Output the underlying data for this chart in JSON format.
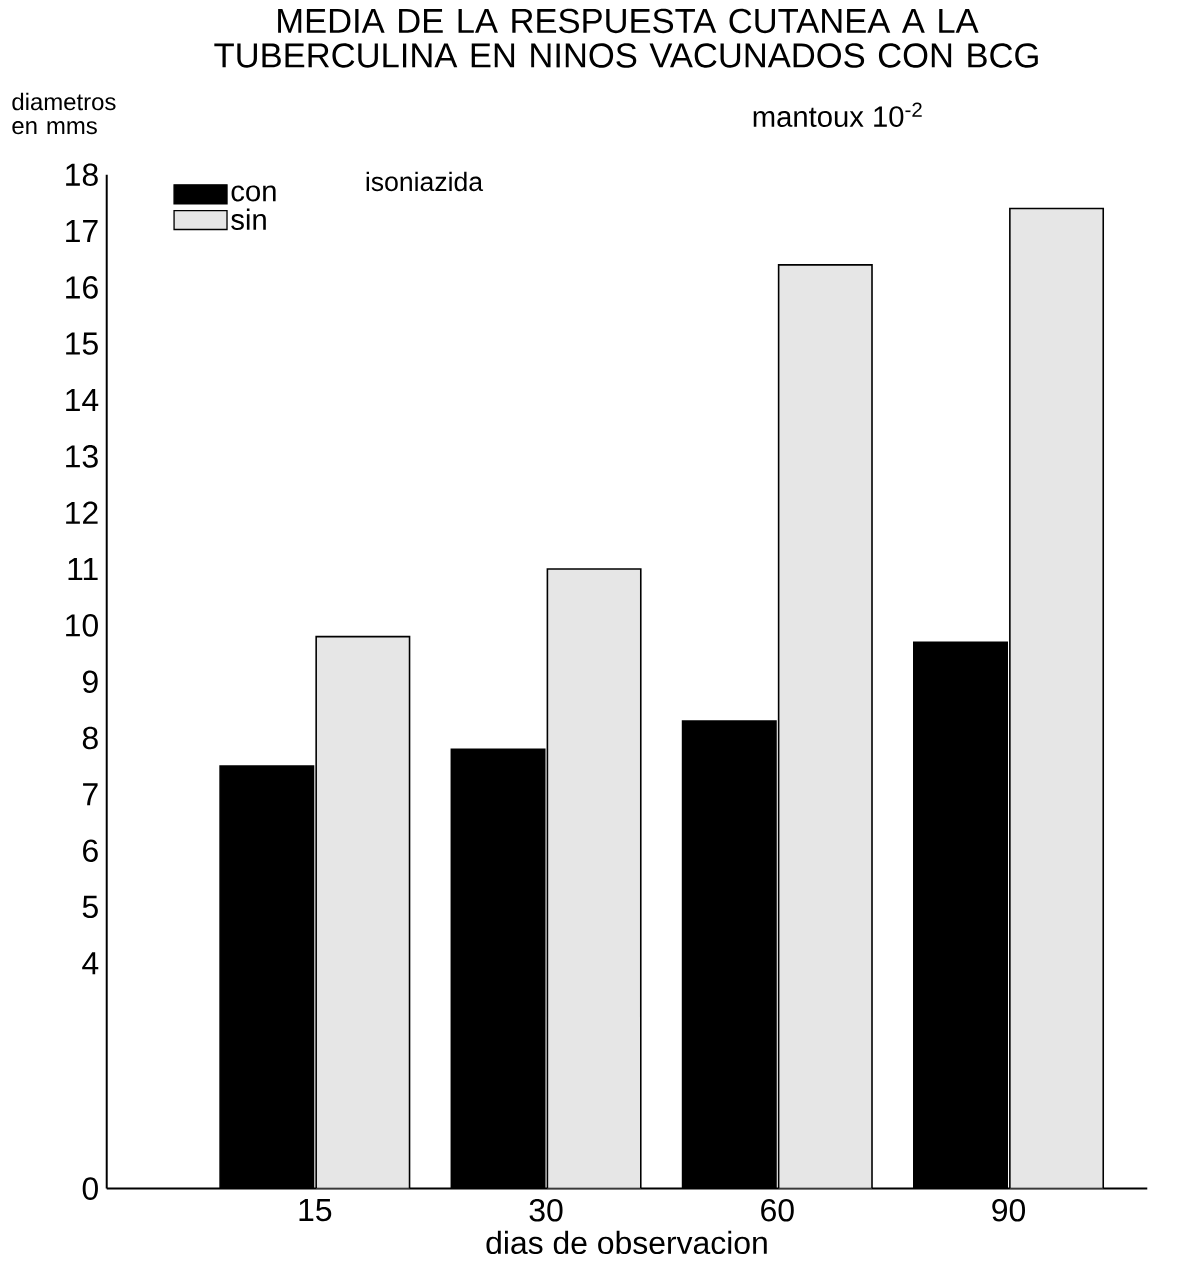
{
  "chart_data": {
    "type": "bar",
    "title": "MEDIA DE LA RESPUESTA CUTANEA A LA TUBERCULINA EN NINOS VACUNADOS CON BCG",
    "xlabel": "dias de observacion",
    "ylabel": "diametros en mms",
    "annotations": [
      "mantoux 10$^{-2}$",
      "isoniazida"
    ],
    "categories": [
      "15",
      "30",
      "60",
      "90"
    ],
    "series": [
      {
        "name": "con",
        "color": "#000000",
        "values": [
          7.5,
          7.8,
          8.3,
          9.7
        ]
      },
      {
        "name": "sin",
        "color": "#e6e6e6",
        "values": [
          9.8,
          11.0,
          16.4,
          17.4
        ]
      }
    ],
    "ylim": [
      0,
      18
    ],
    "yticks": [
      0,
      4,
      5,
      6,
      7,
      8,
      9,
      10,
      11,
      12,
      13,
      14,
      15,
      16,
      17,
      18
    ],
    "legend": "top left",
    "grid": false
  }
}
